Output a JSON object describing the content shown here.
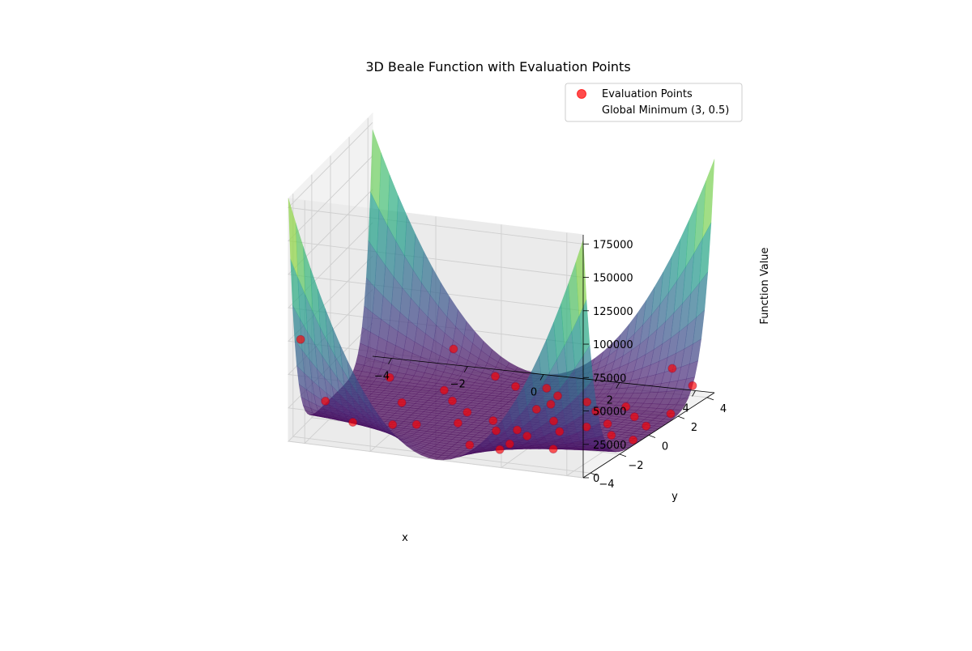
{
  "chart_data": {
    "type": "surface3d",
    "title": "3D Beale Function with Evaluation Points",
    "xlabel": "x",
    "ylabel": "y",
    "zlabel": "Function Value",
    "xlim": [
      -4.5,
      4.5
    ],
    "ylim": [
      -4.5,
      4.5
    ],
    "zlim": [
      0,
      181853
    ],
    "x_ticks": [
      -4,
      -2,
      0,
      2,
      4
    ],
    "x_tick_labels": [
      "−4",
      "−2",
      "0",
      "2",
      "4"
    ],
    "y_ticks": [
      -4,
      -2,
      0,
      2,
      4
    ],
    "y_tick_labels": [
      "−4",
      "−2",
      "0",
      "2",
      "4"
    ],
    "z_ticks": [
      0,
      25000,
      50000,
      75000,
      100000,
      125000,
      150000,
      175000
    ],
    "z_tick_labels": [
      "0",
      "25000",
      "50000",
      "75000",
      "100000",
      "125000",
      "150000",
      "175000"
    ],
    "surface": {
      "function": "beale",
      "colormap": "viridis",
      "alpha": 0.7,
      "x_range": [
        -4.5,
        4.5
      ],
      "y_range": [
        -4.5,
        4.5
      ]
    },
    "legend": {
      "placement": "upper right",
      "entries": [
        {
          "label": "Evaluation Points",
          "marker": "circle",
          "color": "#ff0000"
        },
        {
          "label": "Global Minimum (3, 0.5)",
          "marker": "none",
          "color": ""
        }
      ]
    },
    "series": [
      {
        "name": "Evaluation Points",
        "type": "scatter3d",
        "color": "#ff0000",
        "points": [
          [
            -4.3,
            -3.9
          ],
          [
            -3.7,
            -3.4
          ],
          [
            -3.0,
            -3.0
          ],
          [
            -2.2,
            -1.8
          ],
          [
            -1.6,
            -1.5
          ],
          [
            -0.6,
            -0.9
          ],
          [
            0.4,
            -2.8
          ],
          [
            1.6,
            -3.6
          ],
          [
            2.5,
            -3.8
          ],
          [
            3.3,
            -4.0
          ],
          [
            -2.6,
            0.4
          ],
          [
            -1.4,
            1.1
          ],
          [
            -0.7,
            0.2
          ],
          [
            0.2,
            -0.3
          ],
          [
            0.6,
            -1.2
          ],
          [
            1.1,
            -0.9
          ],
          [
            1.4,
            -2.3
          ],
          [
            1.7,
            0.3
          ],
          [
            2.2,
            -0.6
          ],
          [
            2.7,
            0.1
          ],
          [
            -1.0,
            3.6
          ],
          [
            -0.3,
            3.1
          ],
          [
            0.5,
            3.2
          ],
          [
            1.0,
            2.6
          ],
          [
            1.9,
            2.3
          ],
          [
            2.4,
            1.6
          ],
          [
            3.0,
            2.2
          ],
          [
            3.5,
            1.5
          ],
          [
            3.1,
            0.6
          ],
          [
            3.6,
            -0.4
          ],
          [
            4.1,
            0.8
          ],
          [
            4.3,
            2.0
          ],
          [
            4.5,
            3.0
          ],
          [
            3.8,
            3.4
          ],
          [
            -3.5,
            2.4
          ],
          [
            -2.2,
            3.9
          ],
          [
            -1.9,
            2.0
          ],
          [
            0.9,
            1.2
          ],
          [
            2.8,
            -2.6
          ],
          [
            4.3,
            -0.6
          ]
        ]
      }
    ]
  }
}
